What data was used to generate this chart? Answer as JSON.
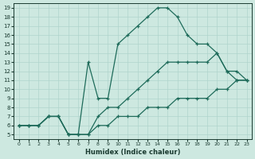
{
  "xlabel": "Humidex (Indice chaleur)",
  "bg_color": "#cde8e0",
  "line_color": "#1e6b5a",
  "grid_color": "#b0d4cc",
  "xlim": [
    -0.5,
    23.5
  ],
  "ylim": [
    4.5,
    19.5
  ],
  "xticks": [
    0,
    1,
    2,
    3,
    4,
    5,
    6,
    7,
    8,
    9,
    10,
    11,
    12,
    13,
    14,
    15,
    16,
    17,
    18,
    19,
    20,
    21,
    22,
    23
  ],
  "yticks": [
    5,
    6,
    7,
    8,
    9,
    10,
    11,
    12,
    13,
    14,
    15,
    16,
    17,
    18,
    19
  ],
  "line1_x": [
    0,
    1,
    2,
    3,
    4,
    5,
    6,
    7,
    8,
    9,
    10,
    11,
    12,
    13,
    14,
    15,
    16,
    17,
    18,
    19,
    20,
    21,
    22,
    23
  ],
  "line1_y": [
    6,
    6,
    6,
    7,
    7,
    5,
    5,
    5,
    6,
    6,
    7,
    7,
    7,
    8,
    8,
    8,
    9,
    9,
    9,
    9,
    10,
    10,
    11,
    11
  ],
  "line2_x": [
    0,
    1,
    2,
    3,
    4,
    5,
    6,
    7,
    8,
    9,
    10,
    11,
    12,
    13,
    14,
    15,
    16,
    17,
    18,
    19,
    20,
    21,
    22,
    23
  ],
  "line2_y": [
    6,
    6,
    6,
    7,
    7,
    5,
    5,
    5,
    7,
    8,
    8,
    9,
    10,
    11,
    12,
    13,
    13,
    13,
    13,
    13,
    14,
    12,
    12,
    11
  ],
  "line3_x": [
    0,
    1,
    2,
    3,
    4,
    5,
    6,
    7,
    8,
    9,
    10,
    11,
    12,
    13,
    14,
    15,
    16,
    17,
    18,
    19,
    20,
    21,
    22,
    23
  ],
  "line3_y": [
    6,
    6,
    6,
    7,
    7,
    5,
    5,
    13,
    9,
    9,
    15,
    16,
    17,
    18,
    19,
    19,
    18,
    16,
    15,
    15,
    14,
    12,
    11,
    11
  ]
}
